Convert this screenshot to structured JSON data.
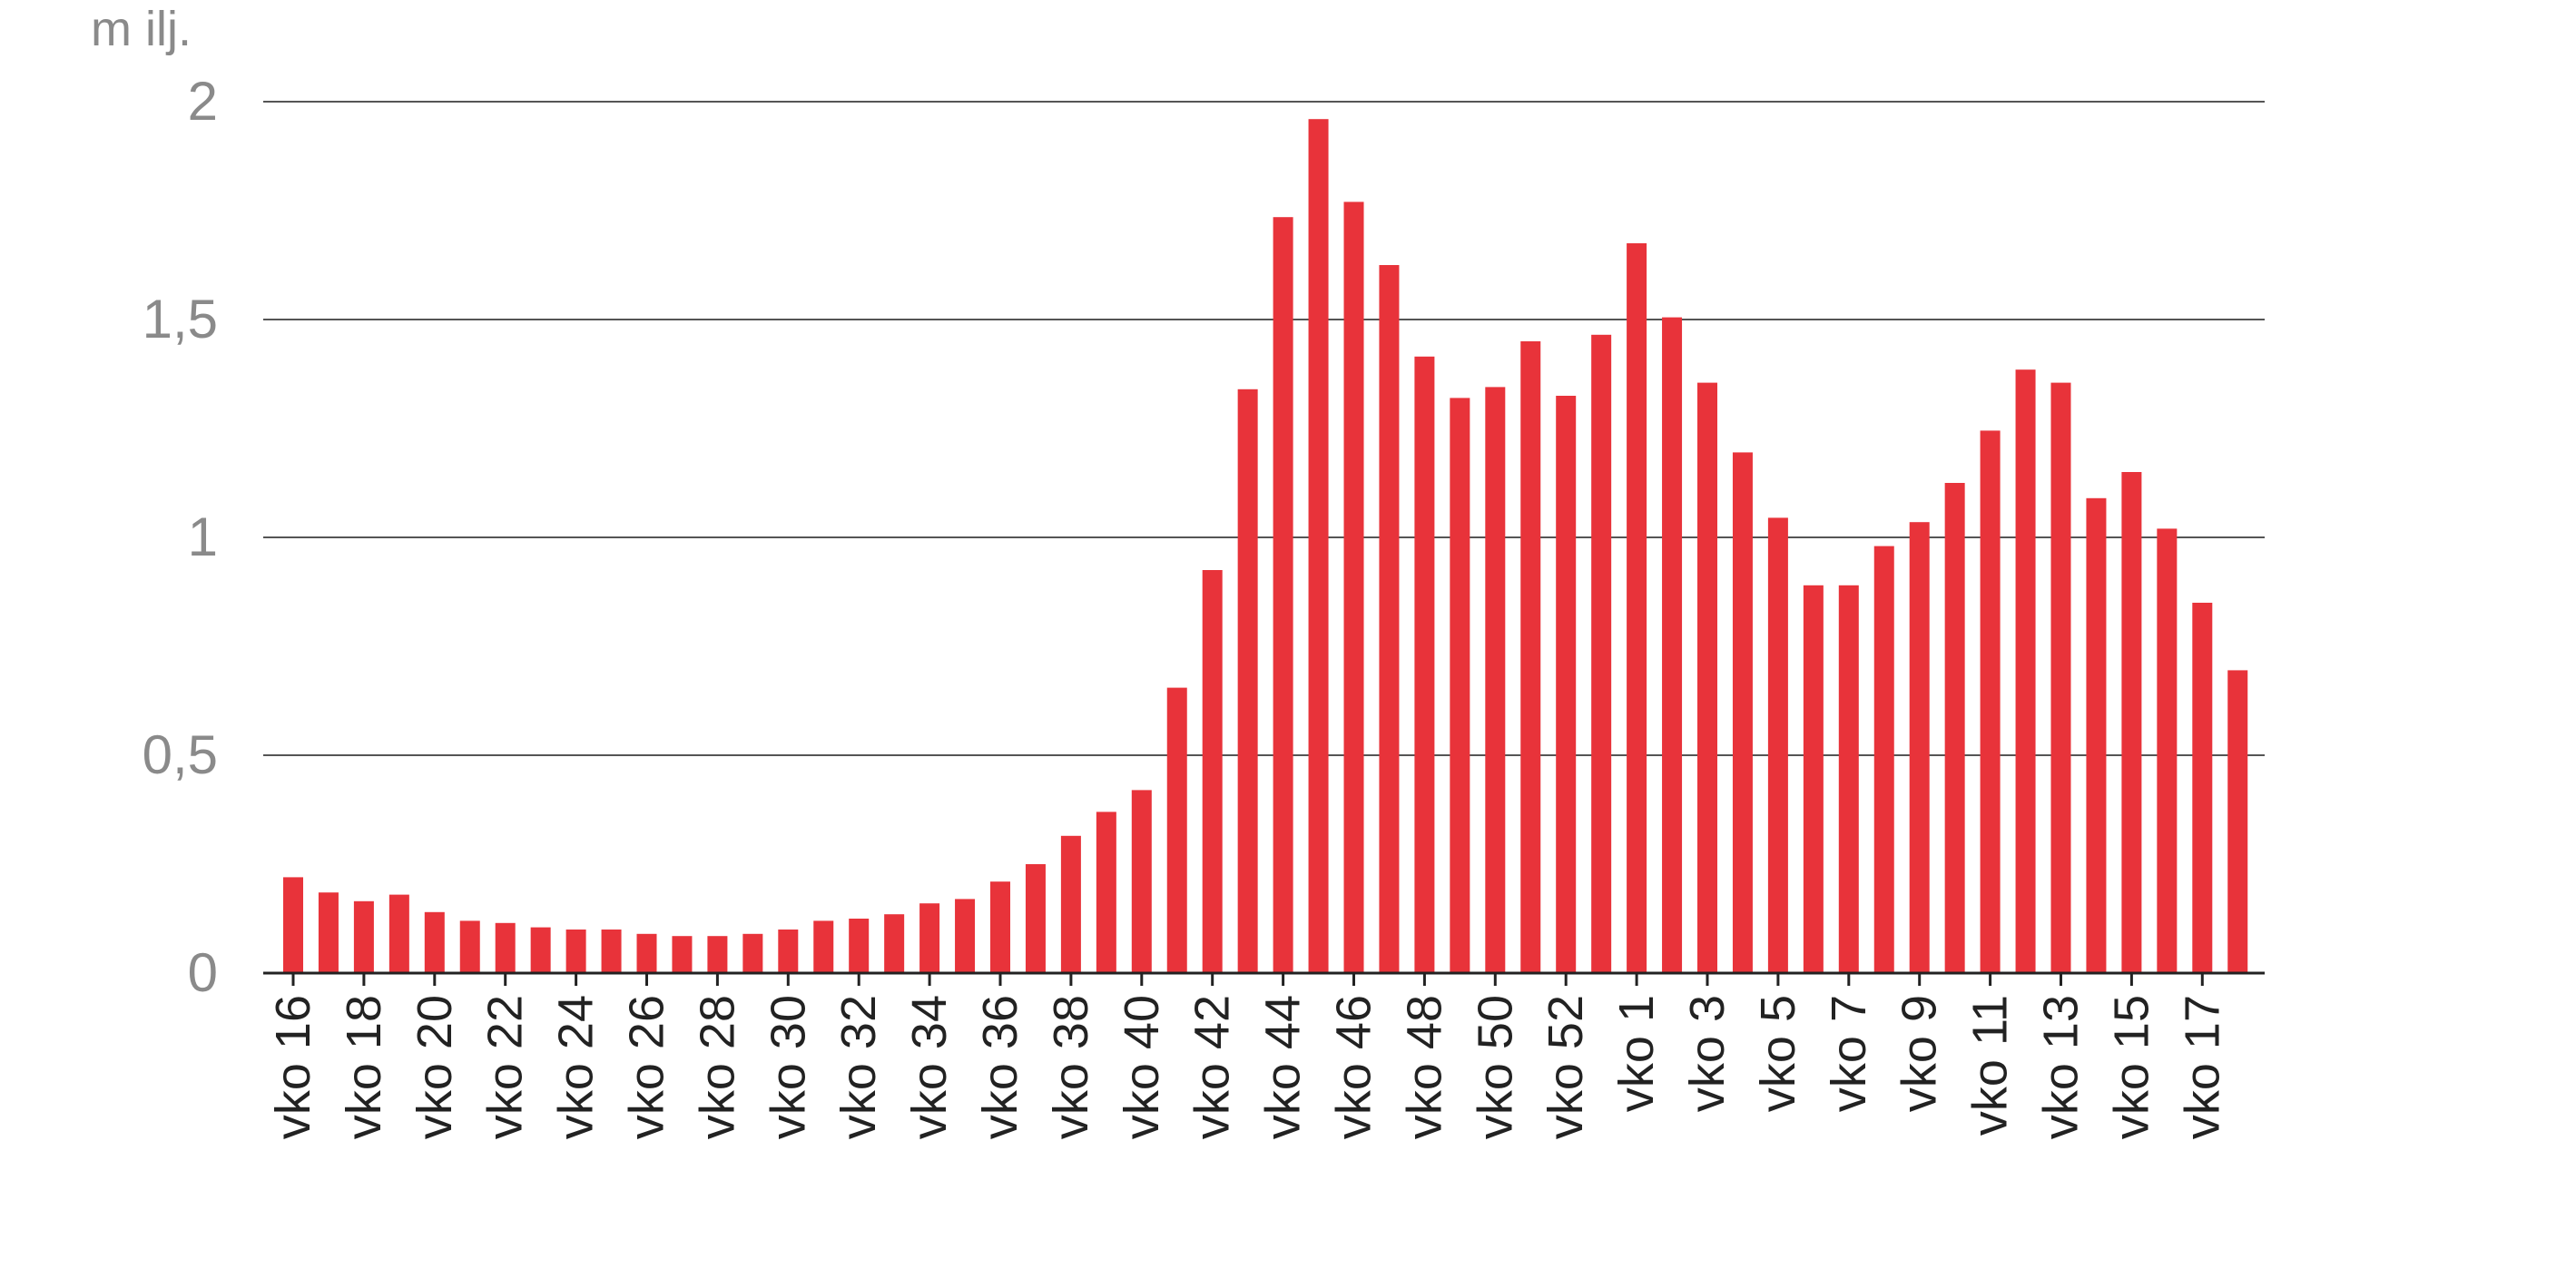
{
  "chart_data": {
    "type": "bar",
    "unit_label": "m ilj.",
    "ylim": [
      0,
      2
    ],
    "y_ticks": [
      {
        "value": 0,
        "label": "0"
      },
      {
        "value": 0.5,
        "label": "0,5"
      },
      {
        "value": 1,
        "label": "1"
      },
      {
        "value": 1.5,
        "label": "1,5"
      },
      {
        "value": 2,
        "label": "2"
      }
    ],
    "grid": true,
    "bar_color": "#e8333a",
    "categories": [
      "vko 16",
      "vko 17",
      "vko 18",
      "vko 19",
      "vko 20",
      "vko 21",
      "vko 22",
      "vko 23",
      "vko 24",
      "vko 25",
      "vko 26",
      "vko 27",
      "vko 28",
      "vko 29",
      "vko 30",
      "vko 31",
      "vko 32",
      "vko 33",
      "vko 34",
      "vko 35",
      "vko 36",
      "vko 37",
      "vko 38",
      "vko 39",
      "vko 40",
      "vko 41",
      "vko 42",
      "vko 43",
      "vko 44",
      "vko 45",
      "vko 46",
      "vko 47",
      "vko 48",
      "vko 49",
      "vko 50",
      "vko 51",
      "vko 52",
      "vko 53",
      "vko 1",
      "vko 2",
      "vko 3",
      "vko 4",
      "vko 5",
      "vko 6",
      "vko 7",
      "vko 8",
      "vko 9",
      "vko 10",
      "vko 11",
      "vko 12",
      "vko 13",
      "vko 14",
      "vko 15",
      "vko 16",
      "vko 17",
      "vko 18"
    ],
    "tick_labels": [
      "vko 16",
      "vko 18",
      "vko 20",
      "vko 22",
      "vko 24",
      "vko 26",
      "vko 28",
      "vko 30",
      "vko 32",
      "vko 34",
      "vko 36",
      "vko 38",
      "vko 40",
      "vko 42",
      "vko 44",
      "vko 46",
      "vko 48",
      "vko 50",
      "vko 52",
      "vko 1",
      "vko 3",
      "vko 5",
      "vko 7",
      "vko 9",
      "vko 11",
      "vko 13",
      "vko 15",
      "vko 17"
    ],
    "values": [
      0.22,
      0.185,
      0.165,
      0.18,
      0.14,
      0.12,
      0.115,
      0.105,
      0.1,
      0.1,
      0.09,
      0.085,
      0.085,
      0.09,
      0.1,
      0.12,
      0.125,
      0.135,
      0.16,
      0.17,
      0.21,
      0.25,
      0.315,
      0.37,
      0.42,
      0.655,
      0.925,
      1.34,
      1.735,
      1.96,
      1.77,
      1.625,
      1.415,
      1.32,
      1.345,
      1.45,
      1.325,
      1.465,
      1.675,
      1.505,
      1.355,
      1.195,
      1.045,
      0.89,
      0.89,
      0.98,
      1.035,
      1.125,
      1.245,
      1.385,
      1.355,
      1.09,
      1.15,
      1.02,
      0.85,
      0.695
    ]
  }
}
